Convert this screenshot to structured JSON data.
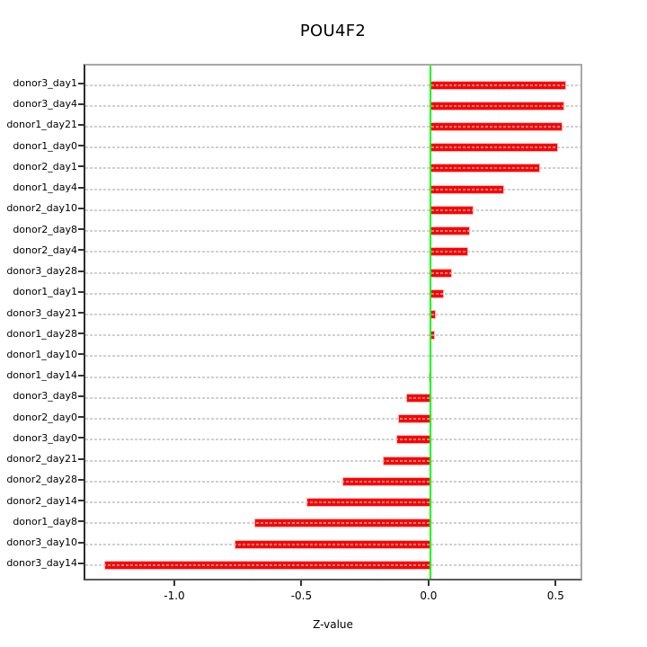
{
  "chart_data": {
    "type": "bar",
    "orientation": "horizontal",
    "title": "POU4F2",
    "xlabel": "Z-value",
    "categories": [
      "donor3_day1",
      "donor3_day4",
      "donor1_day21",
      "donor1_day0",
      "donor2_day1",
      "donor1_day4",
      "donor2_day10",
      "donor2_day8",
      "donor2_day4",
      "donor3_day28",
      "donor1_day1",
      "donor3_day21",
      "donor1_day28",
      "donor1_day10",
      "donor1_day14",
      "donor3_day8",
      "donor2_day0",
      "donor3_day0",
      "donor2_day21",
      "donor2_day28",
      "donor2_day14",
      "donor1_day8",
      "donor3_day10",
      "donor3_day14"
    ],
    "values": [
      0.535,
      0.527,
      0.521,
      0.503,
      0.431,
      0.291,
      0.171,
      0.156,
      0.15,
      0.086,
      0.052,
      0.021,
      0.018,
      0.0,
      -0.008,
      -0.095,
      -0.127,
      -0.133,
      -0.186,
      -0.347,
      -0.488,
      -0.694,
      -0.769,
      -1.283
    ],
    "x_ticks": [
      -1.0,
      -0.5,
      0.0,
      0.5
    ],
    "x_tick_labels": [
      "-1.0",
      "-0.5",
      "0.0",
      "0.5"
    ],
    "xlim": [
      -1.357,
      0.605
    ],
    "zero_line_x": 0,
    "grid": true,
    "legend": "none",
    "colors": {
      "bar_fill": "#fe0000",
      "bar_border": "#ffb9b9",
      "zero_line": "#00ff00",
      "grid_line": "#d5d5d5",
      "box_border": "#a8a8a8",
      "axis": "#333333",
      "background": "#ffffff"
    }
  }
}
